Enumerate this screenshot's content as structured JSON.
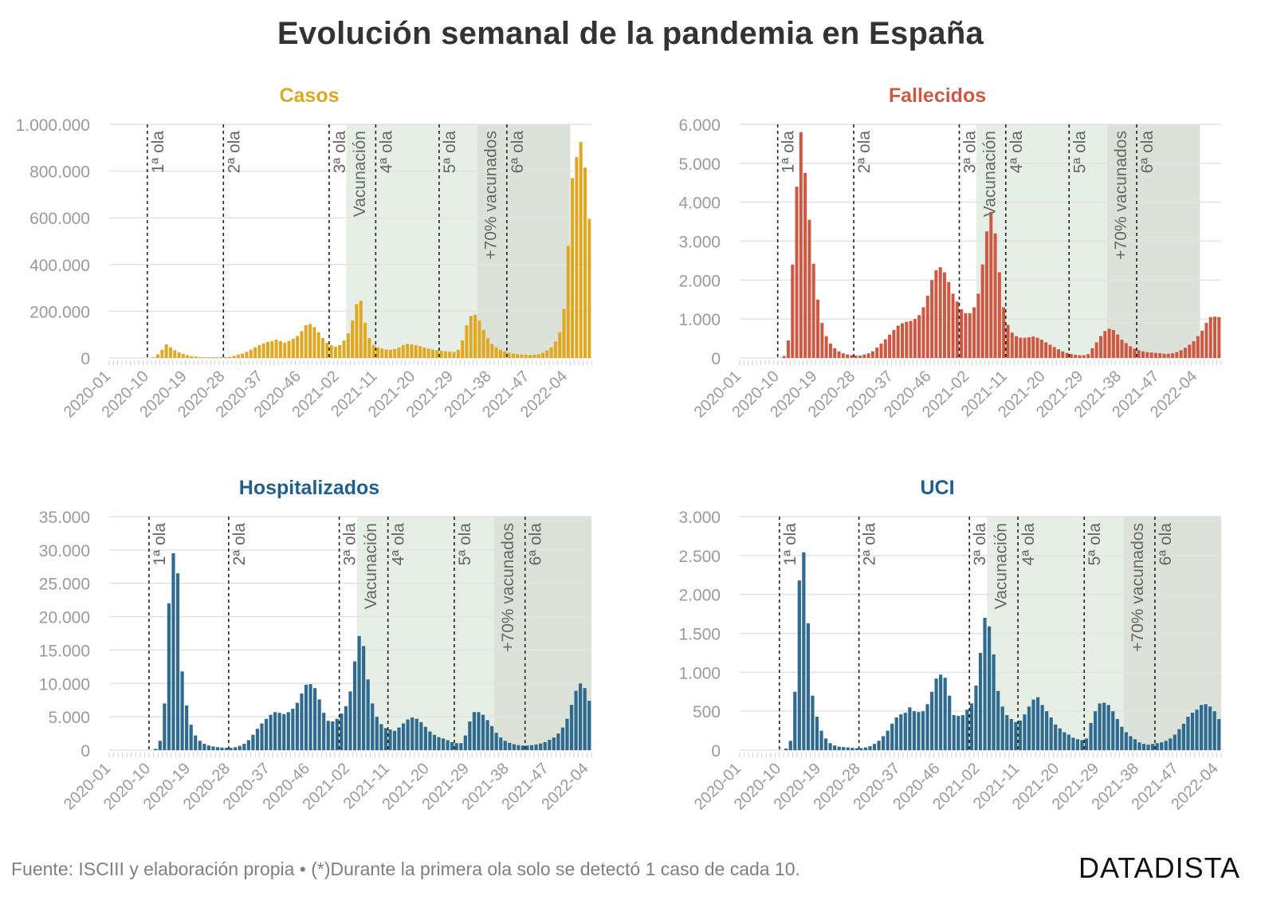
{
  "title": "Evolución semanal de la pandemia en España",
  "source": "Fuente: ISCIII y elaboración propia • (*)Durante la primera ola solo se detectó 1 caso de cada 10.",
  "brand": "DATADISTA",
  "chart_data": [
    {
      "type": "bar",
      "title": "Casos",
      "color": "#e0a820",
      "title_color": "#e0a820",
      "ylim": [
        0,
        1000000
      ],
      "yticks": [
        0,
        200000,
        400000,
        600000,
        800000,
        1000000
      ],
      "ytick_labels": [
        "0",
        "200.000",
        "400.000",
        "600.000",
        "800.000",
        "1.000.000"
      ],
      "x_tick_labels": [
        "2020-01",
        "2020-10",
        "2020-19",
        "2020-28",
        "2020-37",
        "2020-46",
        "2021-02",
        "2021-11",
        "2021-20",
        "2021-29",
        "2021-38",
        "2021-47",
        "2022-04"
      ],
      "grid": true,
      "wave_lines": [
        {
          "week": "2020-10",
          "label": "1ª ola"
        },
        {
          "week": "2020-28",
          "label": "2ª ola"
        },
        {
          "week": "2020-53",
          "label": "3ª ola"
        },
        {
          "week": "2021-11",
          "label": "4ª ola"
        },
        {
          "week": "2021-26",
          "label": "5ª ola"
        },
        {
          "week": "2021-42",
          "label": "6ª ola"
        }
      ],
      "shaded_periods": [
        {
          "from": "2021-04",
          "to": "2021-35",
          "label": "Vacunación"
        },
        {
          "from": "2021-35",
          "to": "2022-04",
          "label": "+70% vacunados"
        }
      ],
      "series": [
        {
          "values": [
            0,
            0,
            0,
            0,
            0,
            0,
            0,
            0,
            0,
            0,
            2000,
            15000,
            35000,
            58000,
            45000,
            33000,
            24000,
            17000,
            12000,
            8000,
            6000,
            4000,
            3000,
            3000,
            3000,
            3000,
            3000,
            4000,
            5000,
            9000,
            14000,
            19000,
            26000,
            35000,
            45000,
            55000,
            62000,
            68000,
            72000,
            78000,
            72000,
            65000,
            73000,
            82000,
            94000,
            115000,
            140000,
            145000,
            132000,
            110000,
            85000,
            65000,
            55000,
            48000,
            55000,
            75000,
            105000,
            160000,
            230000,
            245000,
            150000,
            85000,
            55000,
            45000,
            40000,
            36000,
            35000,
            38000,
            45000,
            55000,
            60000,
            58000,
            55000,
            50000,
            45000,
            40000,
            36000,
            33000,
            31000,
            29000,
            27000,
            25000,
            35000,
            75000,
            140000,
            180000,
            185000,
            160000,
            120000,
            85000,
            60000,
            45000,
            35000,
            28000,
            22000,
            19000,
            17000,
            15000,
            14000,
            13000,
            14000,
            16000,
            22000,
            32000,
            45000,
            70000,
            110000,
            210000,
            480000,
            770000,
            860000,
            925000,
            815000,
            595000
          ]
        }
      ]
    },
    {
      "type": "bar",
      "title": "Fallecidos",
      "color": "#cf5843",
      "title_color": "#cf5843",
      "ylim": [
        0,
        6000
      ],
      "yticks": [
        0,
        1000,
        2000,
        3000,
        4000,
        5000,
        6000
      ],
      "ytick_labels": [
        "0",
        "1.000",
        "2.000",
        "3.000",
        "4.000",
        "5.000",
        "6.000"
      ],
      "x_tick_labels": [
        "2020-01",
        "2020-10",
        "2020-19",
        "2020-28",
        "2020-37",
        "2020-46",
        "2021-02",
        "2021-11",
        "2021-20",
        "2021-29",
        "2021-38",
        "2021-47",
        "2022-04"
      ],
      "grid": true,
      "wave_lines": [
        {
          "week": "2020-10",
          "label": "1ª ola"
        },
        {
          "week": "2020-28",
          "label": "2ª ola"
        },
        {
          "week": "2020-53",
          "label": "3ª ola"
        },
        {
          "week": "2021-11",
          "label": "4ª ola"
        },
        {
          "week": "2021-26",
          "label": "5ª ola"
        },
        {
          "week": "2021-42",
          "label": "6ª ola"
        }
      ],
      "shaded_periods": [
        {
          "from": "2021-04",
          "to": "2021-35",
          "label": "Vacunación"
        },
        {
          "from": "2021-35",
          "to": "2022-04",
          "label": "+70% vacunados"
        }
      ],
      "series": [
        {
          "values": [
            0,
            0,
            0,
            0,
            0,
            0,
            0,
            0,
            0,
            0,
            50,
            450,
            2400,
            4400,
            5800,
            4750,
            3550,
            2420,
            1500,
            900,
            560,
            370,
            250,
            170,
            120,
            90,
            70,
            60,
            60,
            90,
            120,
            170,
            270,
            370,
            480,
            600,
            720,
            830,
            890,
            930,
            950,
            1000,
            1100,
            1300,
            1600,
            2000,
            2250,
            2330,
            2200,
            1950,
            1650,
            1450,
            1250,
            1150,
            1150,
            1300,
            1650,
            2400,
            3250,
            3750,
            3200,
            2200,
            1300,
            850,
            650,
            560,
            520,
            520,
            530,
            550,
            520,
            470,
            400,
            340,
            280,
            220,
            170,
            130,
            100,
            80,
            70,
            70,
            100,
            250,
            400,
            560,
            690,
            750,
            720,
            600,
            470,
            380,
            300,
            240,
            200,
            170,
            150,
            140,
            130,
            120,
            110,
            110,
            120,
            150,
            200,
            260,
            340,
            430,
            560,
            700,
            900,
            1050,
            1060,
            1050
          ]
        }
      ]
    },
    {
      "type": "bar",
      "title": "Hospitalizados",
      "color": "#2f6b91",
      "title_color": "#1f5f8b",
      "ylim": [
        0,
        35000
      ],
      "yticks": [
        0,
        5000,
        10000,
        15000,
        20000,
        25000,
        30000,
        35000
      ],
      "ytick_labels": [
        "0",
        "5.000",
        "10.000",
        "15.000",
        "20.000",
        "25.000",
        "30.000",
        "35.000"
      ],
      "x_tick_labels": [
        "2020-01",
        "2020-10",
        "2020-19",
        "2020-28",
        "2020-37",
        "2020-46",
        "2021-02",
        "2021-11",
        "2021-20",
        "2021-29",
        "2021-38",
        "2021-47",
        "2022-04"
      ],
      "grid": true,
      "wave_lines": [
        {
          "week": "2020-10",
          "label": "1ª ola"
        },
        {
          "week": "2020-28",
          "label": "2ª ola"
        },
        {
          "week": "2020-53",
          "label": "3ª ola"
        },
        {
          "week": "2021-11",
          "label": "4ª ola"
        },
        {
          "week": "2021-26",
          "label": "5ª ola"
        },
        {
          "week": "2021-42",
          "label": "6ª ola"
        }
      ],
      "shaded_periods": [
        {
          "from": "2021-04",
          "to": "2021-35",
          "label": "Vacunación"
        },
        {
          "from": "2021-35",
          "to": "2022-04",
          "label": "+70% vacunados"
        }
      ],
      "series": [
        {
          "values": [
            0,
            0,
            0,
            0,
            0,
            0,
            0,
            0,
            0,
            0,
            200,
            1400,
            7000,
            22000,
            29500,
            26500,
            11800,
            6700,
            3800,
            2200,
            1400,
            950,
            700,
            550,
            450,
            400,
            350,
            350,
            450,
            650,
            950,
            1500,
            2300,
            3200,
            4000,
            4700,
            5300,
            5700,
            5600,
            5400,
            5700,
            6200,
            7100,
            8500,
            9800,
            9900,
            9300,
            7600,
            5600,
            4400,
            4300,
            4700,
            5500,
            6600,
            8800,
            13300,
            17100,
            15600,
            10600,
            7000,
            5000,
            3900,
            3300,
            3100,
            2900,
            3400,
            4000,
            4600,
            4900,
            4700,
            4200,
            3500,
            2800,
            2300,
            1950,
            1750,
            1500,
            1200,
            1050,
            1050,
            2200,
            4300,
            5700,
            5700,
            5300,
            4500,
            3600,
            2600,
            1900,
            1400,
            1100,
            900,
            750,
            700,
            700,
            750,
            850,
            1000,
            1200,
            1550,
            1900,
            2500,
            3400,
            4700,
            6800,
            8900,
            10000,
            9300,
            7400
          ]
        }
      ]
    },
    {
      "type": "bar",
      "title": "UCI",
      "color": "#2f6b91",
      "title_color": "#1f5f8b",
      "ylim": [
        0,
        3000
      ],
      "yticks": [
        0,
        500,
        1000,
        1500,
        2000,
        2500,
        3000
      ],
      "ytick_labels": [
        "0",
        "500",
        "1.000",
        "1.500",
        "2.000",
        "2.500",
        "3.000"
      ],
      "x_tick_labels": [
        "2020-01",
        "2020-10",
        "2020-19",
        "2020-28",
        "2020-37",
        "2020-46",
        "2021-02",
        "2021-11",
        "2021-20",
        "2021-29",
        "2021-38",
        "2021-47",
        "2022-04"
      ],
      "grid": true,
      "wave_lines": [
        {
          "week": "2020-10",
          "label": "1ª ola"
        },
        {
          "week": "2020-28",
          "label": "2ª ola"
        },
        {
          "week": "2020-53",
          "label": "3ª ola"
        },
        {
          "week": "2021-11",
          "label": "4ª ola"
        },
        {
          "week": "2021-26",
          "label": "5ª ola"
        },
        {
          "week": "2021-42",
          "label": "6ª ola"
        }
      ],
      "shaded_periods": [
        {
          "from": "2021-04",
          "to": "2021-35",
          "label": "Vacunación"
        },
        {
          "from": "2021-35",
          "to": "2022-04",
          "label": "+70% vacunados"
        }
      ],
      "series": [
        {
          "values": [
            0,
            0,
            0,
            0,
            0,
            0,
            0,
            0,
            0,
            0,
            20,
            120,
            750,
            2180,
            2540,
            1630,
            700,
            430,
            250,
            150,
            90,
            60,
            45,
            40,
            35,
            30,
            25,
            25,
            35,
            50,
            80,
            120,
            180,
            250,
            340,
            420,
            460,
            480,
            550,
            500,
            490,
            500,
            590,
            750,
            920,
            970,
            930,
            700,
            450,
            440,
            450,
            520,
            600,
            830,
            1250,
            1700,
            1590,
            1230,
            760,
            560,
            450,
            400,
            360,
            380,
            460,
            560,
            650,
            680,
            580,
            500,
            420,
            330,
            280,
            230,
            200,
            160,
            140,
            130,
            150,
            350,
            500,
            600,
            610,
            580,
            500,
            400,
            300,
            230,
            180,
            140,
            100,
            80,
            70,
            80,
            90,
            100,
            120,
            150,
            200,
            270,
            340,
            430,
            480,
            520,
            580,
            590,
            560,
            500,
            400
          ]
        }
      ]
    }
  ]
}
